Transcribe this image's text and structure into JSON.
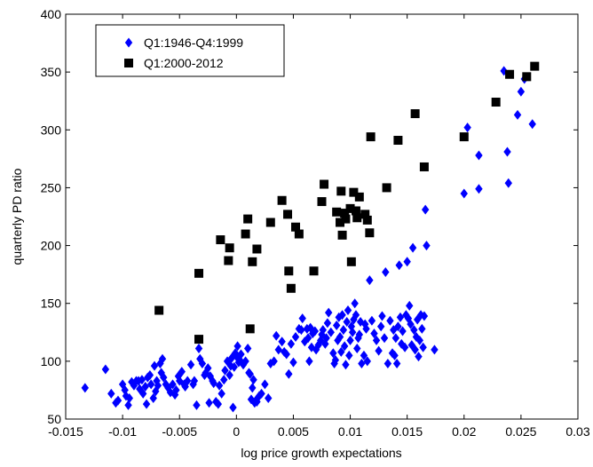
{
  "chart_data": {
    "type": "scatter",
    "title": "",
    "xlabel": "log price growth expectations",
    "ylabel": "quarterly PD ratio",
    "xlim": [
      -0.015,
      0.03
    ],
    "ylim": [
      50,
      400
    ],
    "xticks": [
      -0.015,
      -0.01,
      -0.005,
      0,
      0.005,
      0.01,
      0.015,
      0.02,
      0.025,
      0.03
    ],
    "xtick_labels": [
      "-0.015",
      "-0.01",
      "-0.005",
      "0",
      "0.005",
      "0.01",
      "0.015",
      "0.02",
      "0.025",
      "0.03"
    ],
    "yticks": [
      50,
      100,
      150,
      200,
      250,
      300,
      350,
      400
    ],
    "ytick_labels": [
      "50",
      "100",
      "150",
      "200",
      "250",
      "300",
      "350",
      "400"
    ],
    "grid": false,
    "legend_position": "top-left",
    "series": [
      {
        "name": "Q1:1946-Q4:1999",
        "color": "#0000ff",
        "marker": "diamond",
        "points": [
          [
            -0.0133,
            77
          ],
          [
            -0.0115,
            93
          ],
          [
            -0.011,
            72
          ],
          [
            -0.0106,
            64
          ],
          [
            -0.0104,
            66
          ],
          [
            -0.01,
            80
          ],
          [
            -0.0098,
            75
          ],
          [
            -0.0097,
            70
          ],
          [
            -0.0095,
            62
          ],
          [
            -0.0094,
            68
          ],
          [
            -0.0092,
            82
          ],
          [
            -0.009,
            79
          ],
          [
            -0.0088,
            83
          ],
          [
            -0.0086,
            83
          ],
          [
            -0.0085,
            76
          ],
          [
            -0.0083,
            84
          ],
          [
            -0.0082,
            72
          ],
          [
            -0.008,
            78
          ],
          [
            -0.0079,
            63
          ],
          [
            -0.0078,
            86
          ],
          [
            -0.0076,
            88
          ],
          [
            -0.0075,
            80
          ],
          [
            -0.0073,
            68
          ],
          [
            -0.0072,
            96
          ],
          [
            -0.0071,
            74
          ],
          [
            -0.007,
            83
          ],
          [
            -0.0069,
            79
          ],
          [
            -0.0067,
            98
          ],
          [
            -0.0066,
            90
          ],
          [
            -0.0065,
            102
          ],
          [
            -0.0064,
            86
          ],
          [
            -0.0062,
            80
          ],
          [
            -0.006,
            77
          ],
          [
            -0.0058,
            73
          ],
          [
            -0.0056,
            80
          ],
          [
            -0.0054,
            71
          ],
          [
            -0.0053,
            75
          ],
          [
            -0.0051,
            87
          ],
          [
            -0.005,
            83
          ],
          [
            -0.0048,
            91
          ],
          [
            -0.0046,
            80
          ],
          [
            -0.0045,
            78
          ],
          [
            -0.0043,
            83
          ],
          [
            -0.004,
            97
          ],
          [
            -0.0038,
            80
          ],
          [
            -0.0037,
            83
          ],
          [
            -0.0035,
            62
          ],
          [
            -0.0033,
            111
          ],
          [
            -0.0032,
            102
          ],
          [
            -0.003,
            98
          ],
          [
            -0.0028,
            88
          ],
          [
            -0.0027,
            90
          ],
          [
            -0.0025,
            94
          ],
          [
            -0.0024,
            64
          ],
          [
            -0.0023,
            87
          ],
          [
            -0.0021,
            83
          ],
          [
            -0.002,
            81
          ],
          [
            -0.0018,
            65
          ],
          [
            -0.0016,
            63
          ],
          [
            -0.0015,
            79
          ],
          [
            -0.0013,
            72
          ],
          [
            -0.0011,
            84
          ],
          [
            -0.001,
            92
          ],
          [
            -0.0008,
            100
          ],
          [
            -0.0006,
            88
          ],
          [
            -0.0005,
            96
          ],
          [
            -0.0004,
            103
          ],
          [
            -0.0003,
            60
          ],
          [
            -0.0002,
            95
          ],
          [
            -0.0001,
            107
          ],
          [
            0.0,
            104
          ],
          [
            0.0001,
            113
          ],
          [
            0.0002,
            99
          ],
          [
            0.0003,
            101
          ],
          [
            0.0004,
            106
          ],
          [
            0.0006,
            97
          ],
          [
            0.0008,
            100
          ],
          [
            0.001,
            111
          ],
          [
            0.0011,
            90
          ],
          [
            0.0012,
            89
          ],
          [
            0.0013,
            67
          ],
          [
            0.0014,
            77
          ],
          [
            0.0015,
            84
          ],
          [
            0.0016,
            64
          ],
          [
            0.0017,
            66
          ],
          [
            0.0018,
            65
          ],
          [
            0.002,
            70
          ],
          [
            0.0022,
            72
          ],
          [
            0.0025,
            80
          ],
          [
            0.0028,
            68
          ],
          [
            0.003,
            98
          ],
          [
            0.0033,
            100
          ],
          [
            0.0035,
            122
          ],
          [
            0.0037,
            110
          ],
          [
            0.004,
            117
          ],
          [
            0.0042,
            108
          ],
          [
            0.0044,
            106
          ],
          [
            0.0046,
            89
          ],
          [
            0.0048,
            115
          ],
          [
            0.005,
            99
          ],
          [
            0.0052,
            121
          ],
          [
            0.0055,
            128
          ],
          [
            0.0057,
            127
          ],
          [
            0.0058,
            137
          ],
          [
            0.006,
            117
          ],
          [
            0.0062,
            128
          ],
          [
            0.0063,
            120
          ],
          [
            0.0064,
            100
          ],
          [
            0.0065,
            129
          ],
          [
            0.0066,
            112
          ],
          [
            0.0067,
            124
          ],
          [
            0.0069,
            126
          ],
          [
            0.007,
            110
          ],
          [
            0.0072,
            114
          ],
          [
            0.0074,
            118
          ],
          [
            0.0075,
            123
          ],
          [
            0.0076,
            127
          ],
          [
            0.0078,
            115
          ],
          [
            0.0079,
            120
          ],
          [
            0.008,
            133
          ],
          [
            0.0081,
            142
          ],
          [
            0.0083,
            125
          ],
          [
            0.0085,
            107
          ],
          [
            0.0086,
            98
          ],
          [
            0.0087,
            101
          ],
          [
            0.0088,
            131
          ],
          [
            0.0089,
            118
          ],
          [
            0.009,
            138
          ],
          [
            0.0091,
            121
          ],
          [
            0.0092,
            108
          ],
          [
            0.0093,
            140
          ],
          [
            0.0094,
            127
          ],
          [
            0.0095,
            113
          ],
          [
            0.0096,
            97
          ],
          [
            0.0097,
            134
          ],
          [
            0.0098,
            144
          ],
          [
            0.0099,
            105
          ],
          [
            0.01,
            118
          ],
          [
            0.0101,
            130
          ],
          [
            0.0102,
            125
          ],
          [
            0.0103,
            136
          ],
          [
            0.0104,
            150
          ],
          [
            0.0105,
            140
          ],
          [
            0.0106,
            111
          ],
          [
            0.0107,
            120
          ],
          [
            0.0108,
            123
          ],
          [
            0.0109,
            134
          ],
          [
            0.011,
            98
          ],
          [
            0.0112,
            105
          ],
          [
            0.0113,
            132
          ],
          [
            0.0114,
            128
          ],
          [
            0.0115,
            100
          ],
          [
            0.0117,
            170
          ],
          [
            0.0119,
            135
          ],
          [
            0.0121,
            124
          ],
          [
            0.0123,
            118
          ],
          [
            0.0125,
            109
          ],
          [
            0.0127,
            130
          ],
          [
            0.0128,
            139
          ],
          [
            0.013,
            120
          ],
          [
            0.0131,
            177
          ],
          [
            0.0133,
            98
          ],
          [
            0.0135,
            135
          ],
          [
            0.0137,
            107
          ],
          [
            0.0138,
            127
          ],
          [
            0.0139,
            105
          ],
          [
            0.014,
            120
          ],
          [
            0.0141,
            98
          ],
          [
            0.0142,
            130
          ],
          [
            0.0143,
            183
          ],
          [
            0.0144,
            138
          ],
          [
            0.0145,
            115
          ],
          [
            0.0146,
            126
          ],
          [
            0.0148,
            112
          ],
          [
            0.0149,
            140
          ],
          [
            0.015,
            186
          ],
          [
            0.0151,
            137
          ],
          [
            0.0152,
            148
          ],
          [
            0.0153,
            132
          ],
          [
            0.0154,
            114
          ],
          [
            0.0155,
            198
          ],
          [
            0.0156,
            127
          ],
          [
            0.0157,
            110
          ],
          [
            0.0158,
            121
          ],
          [
            0.0159,
            136
          ],
          [
            0.016,
            104
          ],
          [
            0.0161,
            118
          ],
          [
            0.0162,
            140
          ],
          [
            0.0163,
            128
          ],
          [
            0.0164,
            112
          ],
          [
            0.0165,
            139
          ],
          [
            0.0166,
            231
          ],
          [
            0.0167,
            200
          ],
          [
            0.0174,
            110
          ],
          [
            0.02,
            245
          ],
          [
            0.0203,
            302
          ],
          [
            0.0213,
            278
          ],
          [
            0.0213,
            249
          ],
          [
            0.0235,
            351
          ],
          [
            0.0238,
            281
          ],
          [
            0.0239,
            254
          ],
          [
            0.0247,
            313
          ],
          [
            0.025,
            333
          ],
          [
            0.0253,
            344
          ],
          [
            0.026,
            305
          ]
        ]
      },
      {
        "name": "Q1:2000-2012",
        "color": "#000000",
        "marker": "square",
        "points": [
          [
            -0.0068,
            144
          ],
          [
            -0.0033,
            176
          ],
          [
            -0.0033,
            119
          ],
          [
            -0.0014,
            205
          ],
          [
            -0.0006,
            198
          ],
          [
            -0.0007,
            187
          ],
          [
            0.0008,
            210
          ],
          [
            0.001,
            223
          ],
          [
            0.0012,
            128
          ],
          [
            0.0014,
            186
          ],
          [
            0.0018,
            197
          ],
          [
            0.003,
            220
          ],
          [
            0.004,
            239
          ],
          [
            0.0045,
            227
          ],
          [
            0.0046,
            178
          ],
          [
            0.0048,
            163
          ],
          [
            0.0052,
            216
          ],
          [
            0.0055,
            210
          ],
          [
            0.0068,
            178
          ],
          [
            0.0075,
            238
          ],
          [
            0.0077,
            253
          ],
          [
            0.0088,
            229
          ],
          [
            0.0091,
            220
          ],
          [
            0.0092,
            247
          ],
          [
            0.0093,
            209
          ],
          [
            0.0095,
            228
          ],
          [
            0.0096,
            223
          ],
          [
            0.01,
            232
          ],
          [
            0.0101,
            186
          ],
          [
            0.0103,
            246
          ],
          [
            0.0105,
            230
          ],
          [
            0.0106,
            224
          ],
          [
            0.0108,
            242
          ],
          [
            0.0113,
            227
          ],
          [
            0.0115,
            222
          ],
          [
            0.0117,
            211
          ],
          [
            0.0118,
            294
          ],
          [
            0.0132,
            250
          ],
          [
            0.0142,
            291
          ],
          [
            0.0157,
            314
          ],
          [
            0.0165,
            268
          ],
          [
            0.02,
            294
          ],
          [
            0.0228,
            324
          ],
          [
            0.024,
            348
          ],
          [
            0.0255,
            346
          ],
          [
            0.0262,
            355
          ]
        ]
      }
    ]
  }
}
